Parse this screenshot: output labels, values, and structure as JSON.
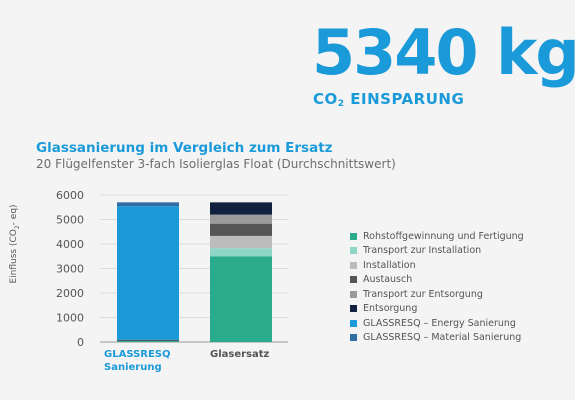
{
  "headline": {
    "value": "5340 kg",
    "label_pre": "CO",
    "label_sub": "2",
    "label_post": " EINSPARUNG"
  },
  "chart_data": {
    "type": "bar",
    "stacked": true,
    "title": "Glassanierung im Vergleich zum Ersatz",
    "subtitle": "20 Flügelfenster 3-fach Isolierglas Float (Durchschnittswert)",
    "ylabel": {
      "pre": "Einfluss (CO",
      "sub": "2",
      "post": "- eq)"
    },
    "ylim": [
      0,
      6000
    ],
    "yticks": [
      "0",
      "1000",
      "2000",
      "3000",
      "4000",
      "5000",
      "6000"
    ],
    "categories": [
      {
        "line1": "GLASSRESQ",
        "line2": "Sanierung",
        "highlight": true
      },
      {
        "line1": "Glasersatz",
        "line2": "",
        "highlight": false
      }
    ],
    "series": [
      {
        "name": "Rohstoffgewinnung und Fertigung",
        "color": "#2aab8c",
        "values": [
          40,
          3500
        ]
      },
      {
        "name": "Transport zur Installation",
        "color": "#8fd6c6",
        "values": [
          0,
          330
        ]
      },
      {
        "name": "Installation",
        "color": "#bcbcbc",
        "values": [
          0,
          500
        ]
      },
      {
        "name": "Austausch",
        "color": "#555555",
        "values": [
          30,
          500
        ]
      },
      {
        "name": "Transport zur Entsorgung",
        "color": "#9a9a9a",
        "values": [
          0,
          370
        ]
      },
      {
        "name": "Entsorgung",
        "color": "#12203f",
        "values": [
          20,
          500
        ]
      },
      {
        "name": "GLASSRESQ – Energy Sanierung",
        "color": "#1b9ad9",
        "values": [
          5450,
          0
        ]
      },
      {
        "name": "GLASSRESQ – Material Sanierung",
        "color": "#2f6fa6",
        "values": [
          160,
          0
        ]
      }
    ],
    "grid": true,
    "legend_position": "right"
  }
}
